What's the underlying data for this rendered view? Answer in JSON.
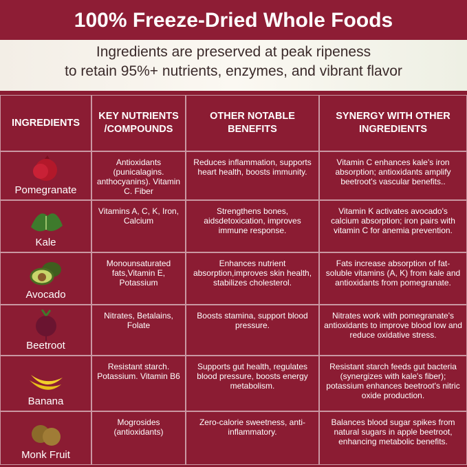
{
  "header": {
    "title": "100% Freeze-Dried Whole Foods",
    "subtitle": [
      "Ingredients are preserved at peak ripeness",
      "to retain 95%+ nutrients, enzymes, and vibrant flavor"
    ]
  },
  "table": {
    "columns": [
      "INGREDIENTS",
      "KEY NUTRIENTS /COMPOUNDS",
      "OTHER NOTABLE BENEFITS",
      "SYNERGY WITH OTHER INGREDIENTS"
    ],
    "rows": [
      [
        "Pomegranate",
        "Antioxidants (punicalagins. anthocyanins). Vitamin C. Fiber",
        "Reduces inflammation, supports heart health, boosts immunity.",
        "Vitamin C enhances kale's iron absorption; antioxidants amplify beetroot's vascular benefits.."
      ],
      [
        "Kale",
        "Vitamins A, C, K, Iron, Calcium",
        "Strengthens bones, aidsdetoxication, improves immune response.",
        "Vitamin K activates avocado's calcium absorption; iron pairs with vitamin C for anemia prevention."
      ],
      [
        "Avocado",
        "Monounsaturated fats,Vitamin E, Potassium",
        "Enhances nutrient absorption,improves skin health, stabilizes cholesterol.",
        "Fats increase absorption of fat-soluble vitamins (A, K) from kale and antioxidants from pomegranate."
      ],
      [
        "Beetroot",
        "Nitrates, Betalains, Folate",
        "Boosts stamina, support blood pressure.",
        "Nitrates work with pomegranate's antioxidants to improve blood low and reduce oxidative stress."
      ],
      [
        "Banana",
        "Resistant starch. Potassium. Vitamin B6",
        "Supports gut health, regulates blood pressure, boosts energy metabolism.",
        "Resistant starch feeds gut bacteria (synergizes with kale's fiber); potassium enhances beetroot's nitric oxide production."
      ],
      [
        "Monk Fruit",
        "Mogrosides (antioxidants)",
        "Zero-calorie sweetness, anti-inflammatory.",
        "Balances blood sugar spikes from natural sugars in apple beetroot, enhancing metabolic benefits."
      ]
    ]
  }
}
